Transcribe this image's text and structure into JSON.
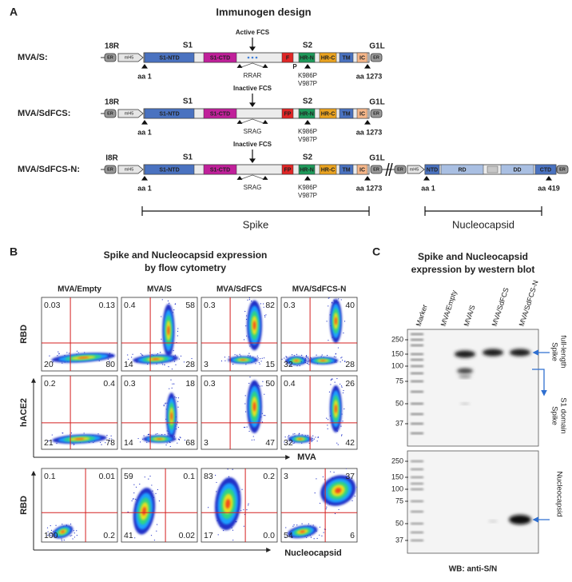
{
  "panel_a": {
    "label": "A",
    "title": "Immunogen design",
    "constructs": [
      {
        "name": "MVA/S:",
        "left_locus": "18R",
        "right_locus": "G1L",
        "er": "ER",
        "promoter": "mH5",
        "er_right": "ER",
        "s1": "S1",
        "s2": "S2",
        "domains": {
          "s1_ntd": "S1-NTD",
          "s1_ctd": "S1-CTD",
          "fp": "F",
          "hr_n": "HR-N",
          "hr_c": "HR-C",
          "tm": "TM",
          "ic": "IC"
        },
        "fp_suffix": "P",
        "fcs_label": "Active FCS",
        "fcs_site": "RRAR",
        "start": "aa 1",
        "end": "aa 1273",
        "mutations": [
          "K986P",
          "V987P"
        ]
      },
      {
        "name": "MVA/SdFCS:",
        "left_locus": "18R",
        "right_locus": "G1L",
        "er": "ER",
        "promoter": "mH5",
        "er_right": "ER",
        "s1": "S1",
        "s2": "S2",
        "domains": {
          "s1_ntd": "S1-NTD",
          "s1_ctd": "S1-CTD",
          "fp": "FP",
          "hr_n": "HR-N",
          "hr_c": "HR-C",
          "tm": "TM",
          "ic": "IC"
        },
        "fcs_label": "Inactive FCS",
        "fcs_site": "SRAG",
        "start": "aa 1",
        "end": "aa 1273",
        "mutations": [
          "K986P",
          "V987P"
        ]
      },
      {
        "name": "MVA/SdFCS-N:",
        "left_locus": "I8R",
        "right_locus": "G1L",
        "er": "ER",
        "promoter": "mH5",
        "er_right": "ER",
        "s1": "S1",
        "s2": "S2",
        "domains": {
          "s1_ntd": "S1-NTD",
          "s1_ctd": "S1-CTD",
          "fp": "FP",
          "hr_n": "HR-N",
          "hr_c": "HR-C",
          "tm": "TM",
          "ic": "IC"
        },
        "fcs_label": "Inactive FCS",
        "fcs_site": "SRAG",
        "start": "aa 1",
        "end": "aa 1273",
        "mutations": [
          "K986P",
          "V987P"
        ],
        "nucleocapsid": {
          "er": "ER",
          "promoter": "mH5",
          "domains": [
            "NTD",
            "RD",
            "DD",
            "CTD"
          ],
          "er_right": "ER",
          "start": "aa 1",
          "end": "aa 419"
        }
      }
    ],
    "brackets": {
      "spike": "Spike",
      "nucleocapsid": "Nucleocapsid"
    }
  },
  "panel_b": {
    "label": "B",
    "title": [
      "Spike and Nucleocapsid expression",
      "by flow cytometry"
    ],
    "columns": [
      "MVA/Empty",
      "MVA/S",
      "MVA/SdFCS",
      "MVA/SdFCS-N"
    ],
    "rows": [
      {
        "y_label": "RBD",
        "quadrants": [
          [
            "0.03",
            "0.13",
            "20",
            "80"
          ],
          [
            "0.4",
            "58",
            "14",
            "28"
          ],
          [
            "0.3",
            "82",
            "3",
            "15"
          ],
          [
            "0.3",
            "40",
            "32",
            "28"
          ]
        ]
      },
      {
        "y_label": "hACE2",
        "quadrants": [
          [
            "0.2",
            "0.4",
            "21",
            "78"
          ],
          [
            "0.3",
            "18",
            "14",
            "68"
          ],
          [
            "0.3",
            "50",
            "3",
            "47"
          ],
          [
            "0.4",
            "26",
            "32",
            "42"
          ]
        ]
      },
      {
        "y_label": "RBD",
        "quadrants": [
          [
            "0.1",
            "0.01",
            "100",
            "0.2"
          ],
          [
            "59",
            "0.1",
            "41",
            "0.02"
          ],
          [
            "83",
            "0.2",
            "17",
            "0.0"
          ],
          [
            "3",
            "37",
            "54",
            "6"
          ]
        ]
      }
    ],
    "x_labels": [
      "MVA",
      "Nucleocapsid"
    ]
  },
  "panel_c": {
    "label": "C",
    "title": [
      "Spike and Nucleocapsid",
      "expression by western blot"
    ],
    "lanes": [
      "Marker",
      "MVA/Empty",
      "MVA/S",
      "MVA/SdFCS",
      "MVA/SdFCS-N"
    ],
    "top_blot": {
      "markers": [
        250,
        150,
        100,
        75,
        50,
        37
      ],
      "annotations": [
        [
          "Spike",
          "full-length"
        ],
        [
          "Spike",
          "S1 domain"
        ]
      ]
    },
    "bottom_blot": {
      "markers": [
        250,
        150,
        100,
        75,
        50,
        37
      ],
      "annotation": "Nucleocapsid"
    },
    "footer": "WB: anti-S/N"
  }
}
